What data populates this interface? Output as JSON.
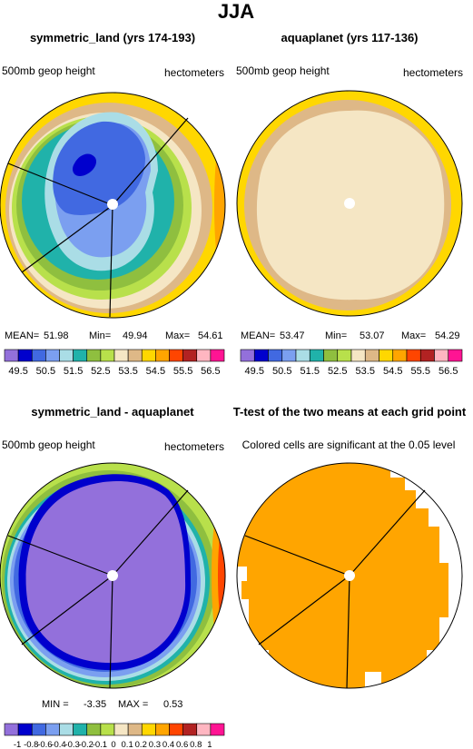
{
  "chart_data": {
    "type": "polar-contour-panels",
    "title": "JJA",
    "panels": [
      {
        "title": "symmetric_land (yrs 174-193)",
        "left_label": "500mb geop height",
        "right_label": "hectometers",
        "stats": {
          "mean_label": "MEAN=",
          "mean": "51.98",
          "min_label": "Min=",
          "min": "49.94",
          "max_label": "Max=",
          "max": "54.61"
        },
        "colorbar": {
          "labels": [
            "49.5",
            "50.5",
            "51.5",
            "52.5",
            "53.5",
            "54.5",
            "55.5",
            "56.5"
          ],
          "colors": [
            "#9370db",
            "#0000cd",
            "#4169e1",
            "#7b9ff0",
            "#aadde6",
            "#20b2aa",
            "#8fbf3f",
            "#b8e04b",
            "#f5e6c4",
            "#deb887",
            "#ffd700",
            "#ffa500",
            "#ff4500",
            "#b22222",
            "#ffb6c1",
            "#ff1493"
          ]
        },
        "land_boundaries": true
      },
      {
        "title": "aquaplanet (yrs 117-136)",
        "left_label": "500mb geop height",
        "right_label": "hectometers",
        "stats": {
          "mean_label": "MEAN=",
          "mean": "53.47",
          "min_label": "Min=",
          "min": "53.07",
          "max_label": "Max=",
          "max": "54.29"
        },
        "colorbar": {
          "labels": [
            "49.5",
            "50.5",
            "51.5",
            "52.5",
            "53.5",
            "54.5",
            "55.5",
            "56.5"
          ],
          "colors": [
            "#9370db",
            "#0000cd",
            "#4169e1",
            "#7b9ff0",
            "#aadde6",
            "#20b2aa",
            "#8fbf3f",
            "#b8e04b",
            "#f5e6c4",
            "#deb887",
            "#ffd700",
            "#ffa500",
            "#ff4500",
            "#b22222",
            "#ffb6c1",
            "#ff1493"
          ]
        },
        "land_boundaries": false
      },
      {
        "title": "symmetric_land - aquaplanet",
        "left_label": "500mb geop height",
        "right_label": "hectometers",
        "stats": {
          "min_label": "MIN =",
          "min": "-3.35",
          "max_label": "MAX =",
          "max": "0.53"
        },
        "colorbar": {
          "labels": [
            "-1",
            "-0.8",
            "-0.6",
            "-0.4",
            "-0.3",
            "-0.2",
            "-0.1",
            "0",
            "0.1",
            "0.2",
            "0.3",
            "0.4",
            "0.6",
            "0.8",
            "1"
          ],
          "colors": [
            "#9370db",
            "#0000cd",
            "#4169e1",
            "#7b9ff0",
            "#aadde6",
            "#20b2aa",
            "#8fbf3f",
            "#b8e04b",
            "#f5e6c4",
            "#deb887",
            "#ffd700",
            "#ffa500",
            "#ff4500",
            "#b22222",
            "#ffb6c1",
            "#ff1493"
          ]
        },
        "land_boundaries": true
      },
      {
        "title": "T-test of the two means at each grid point",
        "subtitle": "Colored cells are significant at the 0.05 level",
        "significant_color": "#ffa500",
        "land_boundaries": true
      }
    ]
  }
}
